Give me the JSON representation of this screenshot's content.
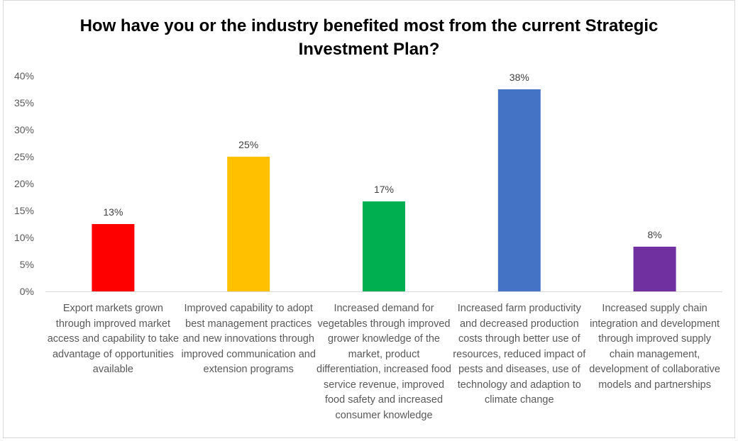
{
  "chart_data": {
    "type": "bar",
    "title": "How have you or the industry benefited most from the current Strategic Investment Plan?",
    "xlabel": "",
    "ylabel": "",
    "ylim": [
      0,
      0.4
    ],
    "yticks": [
      0,
      0.05,
      0.1,
      0.15,
      0.2,
      0.25,
      0.3,
      0.35,
      0.4
    ],
    "ytick_labels": [
      "0%",
      "5%",
      "10%",
      "15%",
      "20%",
      "25%",
      "30%",
      "35%",
      "40%"
    ],
    "grid": false,
    "legend": "none",
    "categories": [
      "Export markets grown through improved market access and capability to take advantage of opportunities available",
      "Improved capability to adopt best management practices and new innovations through improved communication and extension programs",
      "Increased demand for vegetables through improved grower knowledge of the market, product differentiation, increased food service revenue, improved food safety and increased consumer knowledge",
      "Increased farm productivity and decreased production costs through better use of resources, reduced impact of pests and diseases, use of technology and adaption to climate change",
      "Increased supply chain integration and development through improved supply chain management, development of collaborative models and partnerships"
    ],
    "values": [
      0.125,
      0.25,
      0.167,
      0.375,
      0.083
    ],
    "value_labels": [
      "13%",
      "25%",
      "17%",
      "38%",
      "8%"
    ],
    "colors": [
      "#ff0000",
      "#ffc000",
      "#00b050",
      "#4472c4",
      "#7030a0"
    ]
  }
}
